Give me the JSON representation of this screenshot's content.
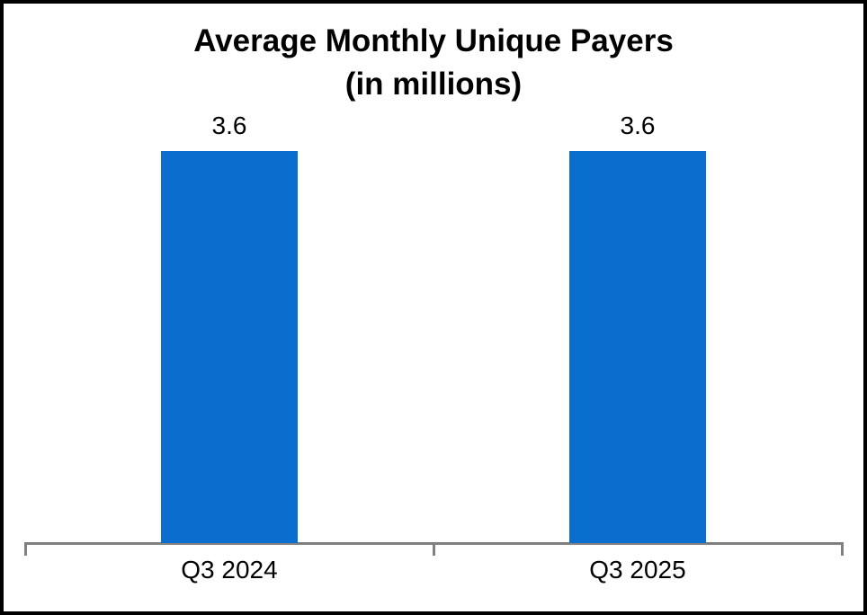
{
  "title": {
    "line1": "Average Monthly Unique Payers",
    "line2": "(in millions)"
  },
  "chart_data": {
    "type": "bar",
    "title": "Average Monthly Unique Payers (in millions)",
    "categories": [
      "Q3 2024",
      "Q3 2025"
    ],
    "values": [
      3.6,
      3.6
    ],
    "data_labels": [
      "3.6",
      "3.6"
    ],
    "xlabel": "",
    "ylabel": "",
    "ylim": [
      0,
      3.6
    ],
    "grid": false,
    "legend": false,
    "bar_color": "#0a6ecf",
    "axis_color": "#808080",
    "text_color": "#000000",
    "background_color": "#ffffff",
    "border_color": "#000000"
  }
}
